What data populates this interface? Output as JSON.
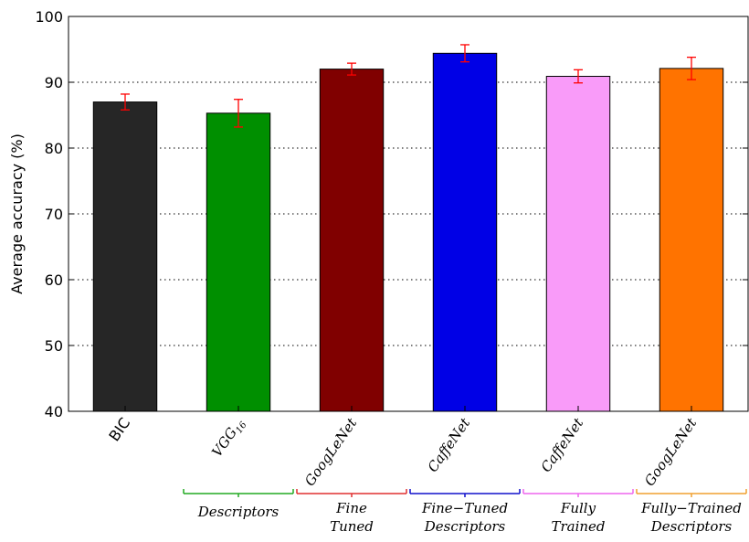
{
  "chart_data": {
    "type": "bar",
    "ylabel": "Average accuracy (%)",
    "ylim": [
      40,
      100
    ],
    "yticks": [
      40,
      50,
      60,
      70,
      80,
      90,
      100
    ],
    "grid": "horizontal dotted",
    "categories": [
      {
        "label": "BIC",
        "base": "",
        "sub": "",
        "italic": false
      },
      {
        "label": "VGG16",
        "base": "VGG",
        "sub": "16",
        "italic": true
      },
      {
        "label": "GoogLeNet",
        "base": "GoogLeNet",
        "sub": "",
        "italic": true
      },
      {
        "label": "CaffeNet",
        "base": "CaffeNet",
        "sub": "",
        "italic": true
      },
      {
        "label": "CaffeNet",
        "base": "CaffeNet",
        "sub": "",
        "italic": true
      },
      {
        "label": "GoogLeNet",
        "base": "GoogLeNet",
        "sub": "",
        "italic": true
      }
    ],
    "values": [
      87.0,
      85.3,
      92.0,
      94.4,
      90.9,
      92.1
    ],
    "errors": [
      1.2,
      2.1,
      0.9,
      1.3,
      1.0,
      1.7
    ],
    "colors": [
      "#262626",
      "#008f00",
      "#800000",
      "#0000e6",
      "#f99bf9",
      "#ff7300"
    ],
    "error_color": "#ff0000",
    "groups": [
      {
        "lines": [
          "Descriptors"
        ],
        "color": "#22aa22",
        "from": 1,
        "to": 1
      },
      {
        "lines": [
          "Fine",
          "Tuned"
        ],
        "color": "#e03030",
        "from": 2,
        "to": 2
      },
      {
        "lines": [
          "Fine−Tuned",
          "Descriptors"
        ],
        "color": "#1010cc",
        "from": 3,
        "to": 3
      },
      {
        "lines": [
          "Fully",
          "Trained"
        ],
        "color": "#ee66ee",
        "from": 4,
        "to": 4
      },
      {
        "lines": [
          "Fully−Trained",
          "Descriptors"
        ],
        "color": "#f0a030",
        "from": 5,
        "to": 5
      }
    ]
  }
}
